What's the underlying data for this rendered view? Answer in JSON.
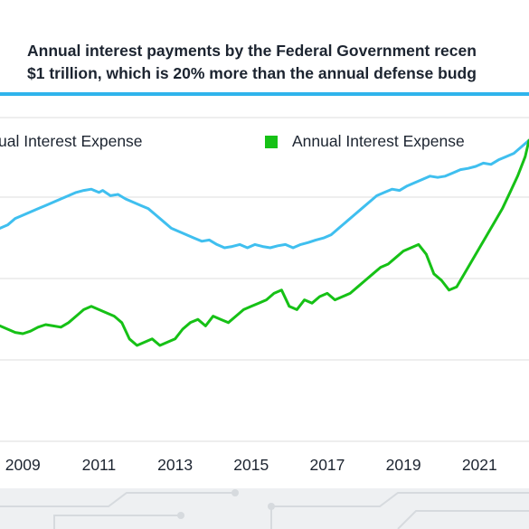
{
  "header": {
    "line1": "Annual interest payments by the Federal Government recen",
    "line2": "$1 trillion, which is 20% more than the annual defense budg"
  },
  "colors": {
    "accent": "#2fb4ec",
    "series_blue": "#3fbfef",
    "series_green": "#16c116",
    "grid": "#dcdcdc",
    "text": "#1c2430"
  },
  "legend": [
    {
      "label": "ual Interest Expense",
      "color": "#3fbfef"
    },
    {
      "label": "Annual Interest Expense",
      "color": "#16c116"
    }
  ],
  "chart_data": {
    "type": "line",
    "x_ticks": [
      "2009",
      "2011",
      "2013",
      "2015",
      "2017",
      "2019",
      "2021"
    ],
    "x_range": [
      2008.4,
      2022.3
    ],
    "y_range": [
      0,
      5
    ],
    "grid": true,
    "legend_position": "top",
    "series": [
      {
        "name": "ual Interest Expense",
        "color": "#3fbfef",
        "x": [
          2008.4,
          2008.6,
          2008.8,
          2009.0,
          2009.2,
          2009.4,
          2009.6,
          2009.8,
          2010.0,
          2010.2,
          2010.4,
          2010.6,
          2010.8,
          2011.0,
          2011.1,
          2011.3,
          2011.5,
          2011.7,
          2011.9,
          2012.1,
          2012.3,
          2012.5,
          2012.7,
          2012.9,
          2013.1,
          2013.3,
          2013.5,
          2013.7,
          2013.9,
          2014.1,
          2014.3,
          2014.5,
          2014.7,
          2014.9,
          2015.1,
          2015.3,
          2015.5,
          2015.7,
          2015.9,
          2016.1,
          2016.3,
          2016.5,
          2016.7,
          2016.9,
          2017.1,
          2017.3,
          2017.5,
          2017.7,
          2017.9,
          2018.1,
          2018.3,
          2018.5,
          2018.7,
          2018.9,
          2019.1,
          2019.3,
          2019.5,
          2019.7,
          2019.9,
          2020.1,
          2020.3,
          2020.5,
          2020.7,
          2020.9,
          2021.1,
          2021.3,
          2021.5,
          2021.7,
          2021.9,
          2022.1,
          2022.3
        ],
        "values": [
          3.3,
          3.35,
          3.45,
          3.5,
          3.55,
          3.6,
          3.65,
          3.7,
          3.75,
          3.8,
          3.85,
          3.88,
          3.9,
          3.85,
          3.88,
          3.8,
          3.82,
          3.75,
          3.7,
          3.65,
          3.6,
          3.5,
          3.4,
          3.3,
          3.25,
          3.2,
          3.15,
          3.1,
          3.12,
          3.05,
          3.0,
          3.02,
          3.05,
          3.0,
          3.05,
          3.02,
          3.0,
          3.03,
          3.05,
          3.0,
          3.05,
          3.08,
          3.12,
          3.15,
          3.2,
          3.3,
          3.4,
          3.5,
          3.6,
          3.7,
          3.8,
          3.85,
          3.9,
          3.88,
          3.95,
          4.0,
          4.05,
          4.1,
          4.08,
          4.1,
          4.15,
          4.2,
          4.22,
          4.25,
          4.3,
          4.28,
          4.35,
          4.4,
          4.45,
          4.55,
          4.65
        ]
      },
      {
        "name": "Annual Interest Expense",
        "color": "#16c116",
        "x": [
          2008.4,
          2008.6,
          2008.8,
          2009.0,
          2009.2,
          2009.4,
          2009.6,
          2009.8,
          2010.0,
          2010.2,
          2010.4,
          2010.6,
          2010.8,
          2011.0,
          2011.2,
          2011.4,
          2011.6,
          2011.8,
          2012.0,
          2012.2,
          2012.4,
          2012.6,
          2012.8,
          2013.0,
          2013.2,
          2013.4,
          2013.6,
          2013.8,
          2014.0,
          2014.2,
          2014.4,
          2014.6,
          2014.8,
          2015.0,
          2015.2,
          2015.4,
          2015.6,
          2015.8,
          2016.0,
          2016.2,
          2016.4,
          2016.6,
          2016.8,
          2017.0,
          2017.2,
          2017.4,
          2017.6,
          2017.8,
          2018.0,
          2018.2,
          2018.4,
          2018.6,
          2018.8,
          2019.0,
          2019.2,
          2019.4,
          2019.6,
          2019.8,
          2020.0,
          2020.2,
          2020.4,
          2020.6,
          2020.8,
          2021.0,
          2021.2,
          2021.4,
          2021.6,
          2021.8,
          2022.0,
          2022.2,
          2022.3
        ],
        "values": [
          1.8,
          1.75,
          1.7,
          1.68,
          1.72,
          1.78,
          1.82,
          1.8,
          1.78,
          1.85,
          1.95,
          2.05,
          2.1,
          2.05,
          2.0,
          1.95,
          1.85,
          1.6,
          1.5,
          1.55,
          1.6,
          1.5,
          1.55,
          1.6,
          1.75,
          1.85,
          1.9,
          1.8,
          1.95,
          1.9,
          1.85,
          1.95,
          2.05,
          2.1,
          2.15,
          2.2,
          2.3,
          2.35,
          2.1,
          2.05,
          2.2,
          2.15,
          2.25,
          2.3,
          2.2,
          2.25,
          2.3,
          2.4,
          2.5,
          2.6,
          2.7,
          2.75,
          2.85,
          2.95,
          3.0,
          3.05,
          2.9,
          2.6,
          2.5,
          2.35,
          2.4,
          2.6,
          2.8,
          3.0,
          3.2,
          3.4,
          3.6,
          3.85,
          4.1,
          4.4,
          4.65
        ]
      }
    ]
  }
}
